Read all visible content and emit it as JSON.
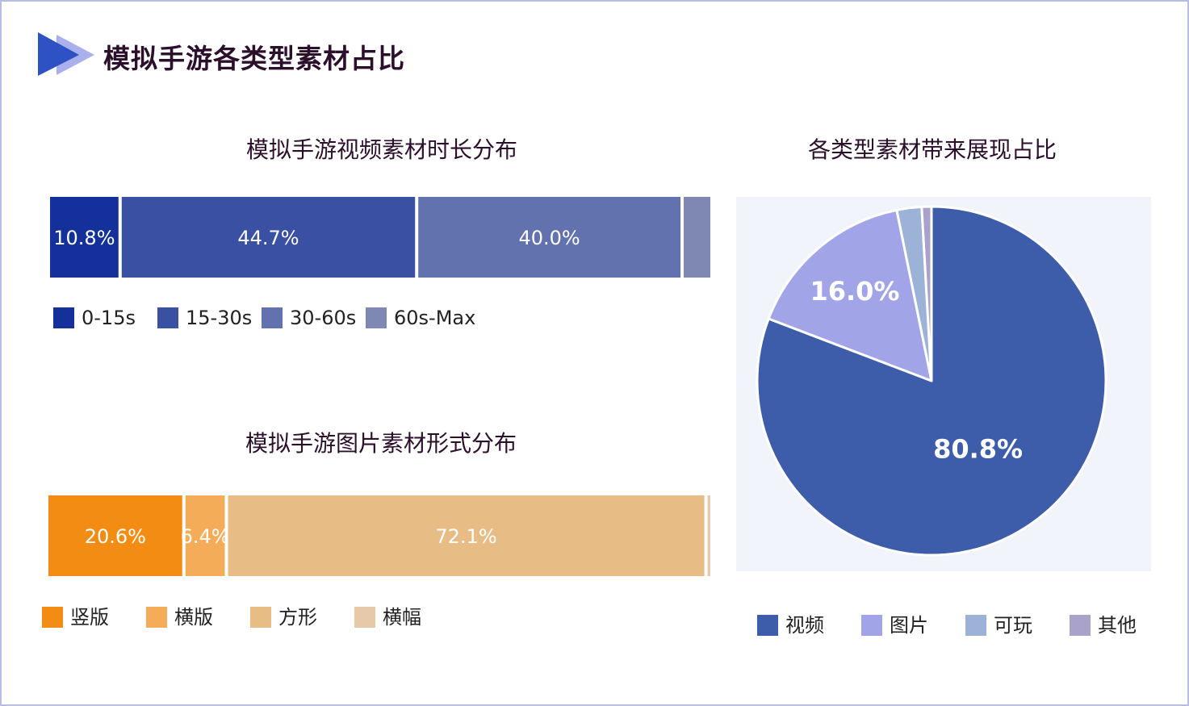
{
  "page": {
    "title": "模拟手游各类型素材占比"
  },
  "chart_data": [
    {
      "type": "bar",
      "orientation": "horizontal-stacked-100%",
      "title": "模拟手游视频素材时长分布",
      "series": [
        {
          "name": "0-15s",
          "value": 10.8,
          "label": "10.8%",
          "color": "#14309a"
        },
        {
          "name": "15-30s",
          "value": 44.7,
          "label": "44.7%",
          "color": "#3a51a3"
        },
        {
          "name": "30-60s",
          "value": 40.0,
          "label": "40.0%",
          "color": "#6272ae"
        },
        {
          "name": "60s-Max",
          "value": 4.5,
          "label": "",
          "color": "#7f88b3"
        }
      ],
      "legend_position": "bottom-left",
      "grid": false
    },
    {
      "type": "bar",
      "orientation": "horizontal-stacked-100%",
      "title": "模拟手游图片素材形式分布",
      "series": [
        {
          "name": "竖版",
          "value": 20.6,
          "label": "20.6%",
          "color": "#f28c13"
        },
        {
          "name": "横版",
          "value": 6.4,
          "label": "6.4%",
          "color": "#f4ac59"
        },
        {
          "name": "方形",
          "value": 72.1,
          "label": "72.1%",
          "color": "#e8bc85"
        },
        {
          "name": "横幅",
          "value": 0.9,
          "label": "",
          "color": "#e6c9a8"
        }
      ],
      "legend_position": "bottom-left",
      "grid": false
    },
    {
      "type": "pie",
      "title": "各类型素材带来展现占比",
      "series": [
        {
          "name": "视频",
          "value": 80.8,
          "label": "80.8%",
          "color": "#3d5ca9"
        },
        {
          "name": "图片",
          "value": 16.0,
          "label": "16.0%",
          "color": "#a1a5e8"
        },
        {
          "name": "可玩",
          "value": 2.3,
          "label": "",
          "color": "#9cb2d6"
        },
        {
          "name": "其他",
          "value": 0.9,
          "label": "",
          "color": "#a9a3cb"
        }
      ],
      "legend_position": "bottom"
    }
  ]
}
